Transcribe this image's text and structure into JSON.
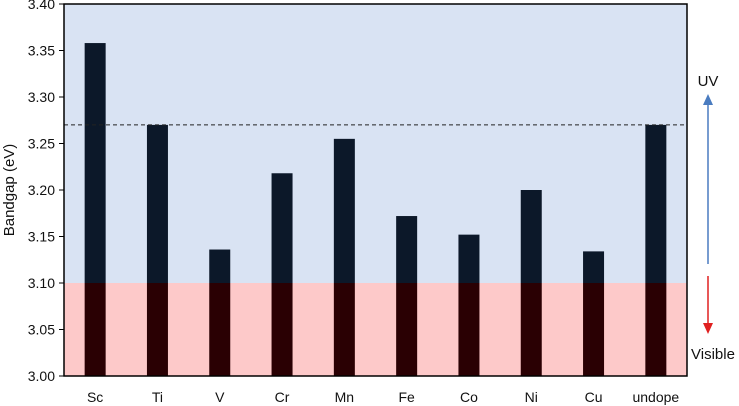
{
  "chart_data": {
    "type": "bar",
    "title": "",
    "xlabel": "",
    "ylabel": "Bandgap (eV)",
    "ylim": [
      3.0,
      3.4
    ],
    "yticks": [
      "3.00",
      "3.05",
      "3.10",
      "3.15",
      "3.20",
      "3.25",
      "3.30",
      "3.35",
      "3.40"
    ],
    "categories": [
      "Sc",
      "Ti",
      "V",
      "Cr",
      "Mn",
      "Fe",
      "Co",
      "Ni",
      "Cu",
      "undope"
    ],
    "values": [
      3.358,
      3.27,
      3.136,
      3.218,
      3.255,
      3.172,
      3.152,
      3.2,
      3.134,
      3.27
    ],
    "reference_line": {
      "value": 3.27,
      "style": "dashed"
    },
    "regions": [
      {
        "label": "UV",
        "from": 3.1,
        "to": 3.4,
        "color": "#d9e3f3",
        "arrow": "up",
        "arrow_color": "#4a7cc0"
      },
      {
        "label": "Visible",
        "from": 3.0,
        "to": 3.1,
        "color": "#fdc9c9",
        "arrow": "down",
        "arrow_color": "#e02020"
      }
    ],
    "bar_color": "#0c1829",
    "bar_color_in_visible": "#2a0003",
    "grid": false,
    "legend": "none"
  }
}
